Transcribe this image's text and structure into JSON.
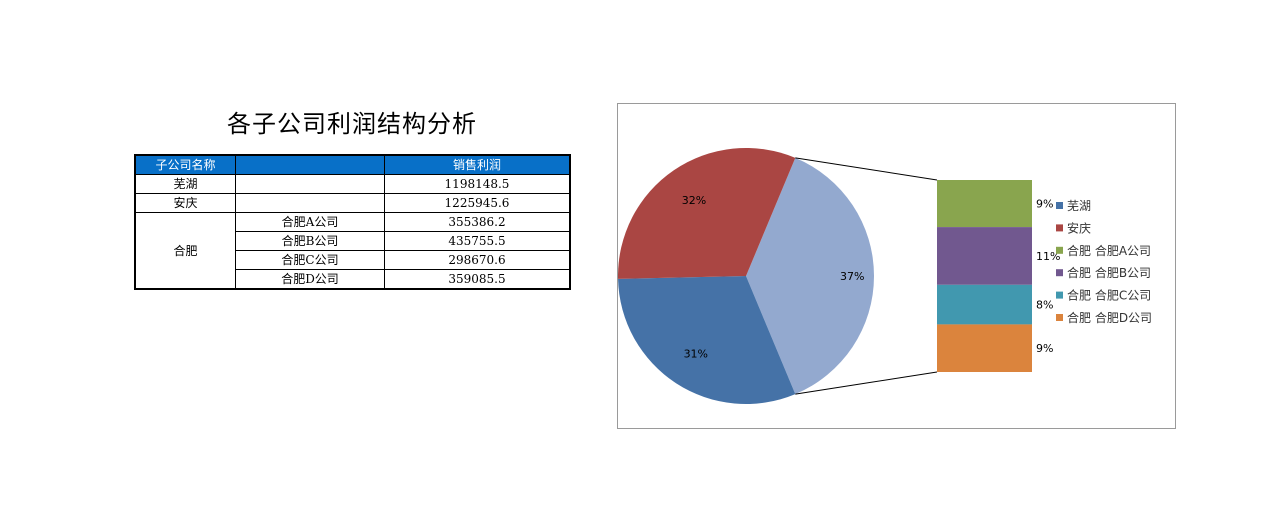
{
  "title": "各子公司利润结构分析",
  "table": {
    "headers": [
      "子公司名称",
      "",
      "销售利润"
    ],
    "rows": [
      {
        "name": "芜湖",
        "sub": "",
        "value": "1198148.5"
      },
      {
        "name": "安庆",
        "sub": "",
        "value": "1225945.6"
      },
      {
        "name": "合肥",
        "sub": "合肥A公司",
        "value": "355386.2"
      },
      {
        "name": "",
        "sub": "合肥B公司",
        "value": "435755.5"
      },
      {
        "name": "",
        "sub": "合肥C公司",
        "value": "298670.6"
      },
      {
        "name": "",
        "sub": "合肥D公司",
        "value": "359085.5"
      }
    ]
  },
  "chart_data": {
    "type": "pie",
    "subtype": "bar-of-pie",
    "legend_position": "right",
    "pie": {
      "slices": [
        {
          "label": "芜湖",
          "value": 1198148.5,
          "percent_label": "31%",
          "color": "#4572a7"
        },
        {
          "label": "安庆",
          "value": 1225945.6,
          "percent_label": "32%",
          "color": "#aa4643"
        },
        {
          "label": "合肥",
          "value": 1448897.8,
          "percent_label": "37%",
          "color": "#93a9cf"
        }
      ]
    },
    "bar": {
      "segments": [
        {
          "label": "合肥 合肥A公司",
          "value": 355386.2,
          "percent_label": "9%",
          "color": "#89a54e"
        },
        {
          "label": "合肥 合肥B公司",
          "value": 435755.5,
          "percent_label": "11%",
          "color": "#71588f"
        },
        {
          "label": "合肥 合肥C公司",
          "value": 298670.6,
          "percent_label": "8%",
          "color": "#4198af"
        },
        {
          "label": "合肥 合肥D公司",
          "value": 359085.5,
          "percent_label": "9%",
          "color": "#db843d"
        }
      ]
    },
    "legend": [
      {
        "label": "芜湖",
        "color": "#4572a7"
      },
      {
        "label": "安庆",
        "color": "#aa4643"
      },
      {
        "label": "合肥 合肥A公司",
        "color": "#89a54e"
      },
      {
        "label": "合肥 合肥B公司",
        "color": "#71588f"
      },
      {
        "label": "合肥 合肥C公司",
        "color": "#4198af"
      },
      {
        "label": "合肥 合肥D公司",
        "color": "#db843d"
      }
    ]
  }
}
